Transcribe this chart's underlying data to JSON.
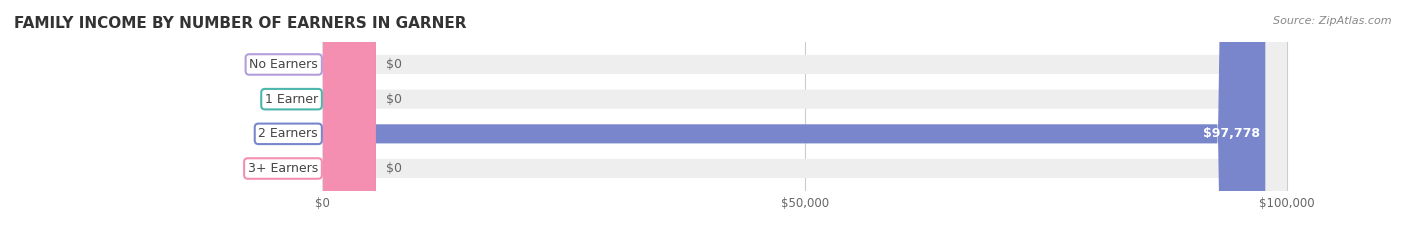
{
  "title": "FAMILY INCOME BY NUMBER OF EARNERS IN GARNER",
  "source": "Source: ZipAtlas.com",
  "categories": [
    "No Earners",
    "1 Earner",
    "2 Earners",
    "3+ Earners"
  ],
  "values": [
    0,
    0,
    97778,
    0
  ],
  "max_value": 100000,
  "bar_colors": [
    "#b39ddb",
    "#4db6ac",
    "#7986cb",
    "#f48fb1"
  ],
  "bar_bg_color": "#eeeeee",
  "label_colors": [
    "#b39ddb",
    "#4db6ac",
    "#7986cb",
    "#f48fb1"
  ],
  "value_labels": [
    "$0",
    "$0",
    "$97,778",
    "$0"
  ],
  "xtick_labels": [
    "$0",
    "$50,000",
    "$100,000"
  ],
  "xtick_values": [
    0,
    50000,
    100000
  ],
  "title_fontsize": 11,
  "source_fontsize": 8,
  "label_fontsize": 9,
  "bar_height": 0.55,
  "background_color": "#ffffff",
  "plot_bg_color": "#f5f5f5"
}
